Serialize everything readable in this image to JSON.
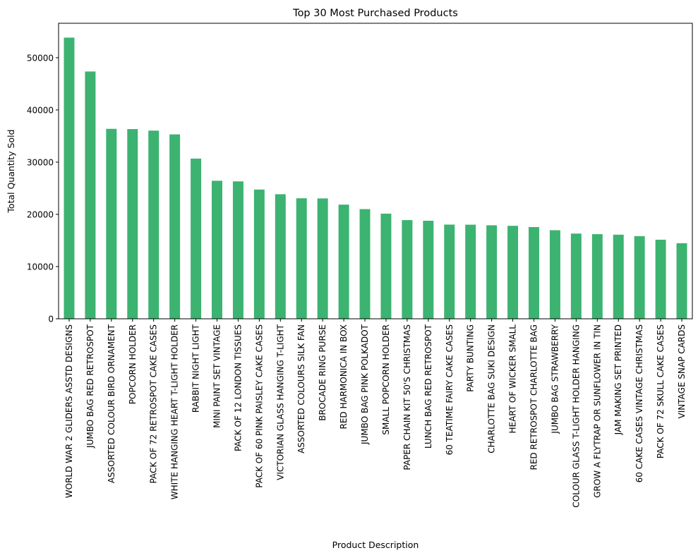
{
  "chart_data": {
    "type": "bar",
    "title": "Top 30 Most Purchased Products",
    "xlabel": "Product Description",
    "ylabel": "Total Quantity Sold",
    "ylim": [
      0,
      56600
    ],
    "yticks": [
      0,
      10000,
      20000,
      30000,
      40000,
      50000
    ],
    "grid": false,
    "legend": "none",
    "bar_color": "#3cb371",
    "categories": [
      "WORLD WAR 2 GLIDERS ASSTD DESIGNS",
      "JUMBO BAG RED RETROSPOT",
      "ASSORTED COLOUR BIRD ORNAMENT",
      "POPCORN HOLDER",
      "PACK OF 72 RETROSPOT CAKE CASES",
      "WHITE HANGING HEART T-LIGHT HOLDER",
      "RABBIT NIGHT LIGHT",
      "MINI PAINT SET VINTAGE",
      "PACK OF 12 LONDON TISSUES",
      "PACK OF 60 PINK PAISLEY CAKE CASES",
      "VICTORIAN GLASS HANGING T-LIGHT",
      "ASSORTED COLOURS SILK FAN",
      "BROCADE RING PURSE",
      "RED  HARMONICA IN BOX",
      "JUMBO BAG PINK POLKADOT",
      "SMALL POPCORN HOLDER",
      "PAPER CHAIN KIT 50'S CHRISTMAS",
      "LUNCH BAG RED RETROSPOT",
      "60 TEATIME FAIRY CAKE CASES",
      "PARTY BUNTING",
      "CHARLOTTE BAG SUKI DESIGN",
      "HEART OF WICKER SMALL",
      "RED RETROSPOT CHARLOTTE BAG",
      "JUMBO BAG STRAWBERRY",
      "COLOUR GLASS T-LIGHT HOLDER HANGING",
      "GROW A FLYTRAP OR SUNFLOWER IN TIN",
      "JAM MAKING SET PRINTED",
      "60 CAKE CASES VINTAGE CHRISTMAS",
      "PACK OF 72 SKULL CAKE CASES",
      "VINTAGE SNAP CARDS"
    ],
    "values": [
      53847,
      47363,
      36381,
      36334,
      36039,
      35317,
      30680,
      26437,
      26315,
      24753,
      23854,
      23082,
      23053,
      21866,
      21009,
      20140,
      18902,
      18779,
      18040,
      18022,
      17910,
      17805,
      17570,
      16964,
      16321,
      16208,
      16108,
      15836,
      15144,
      14479
    ]
  }
}
